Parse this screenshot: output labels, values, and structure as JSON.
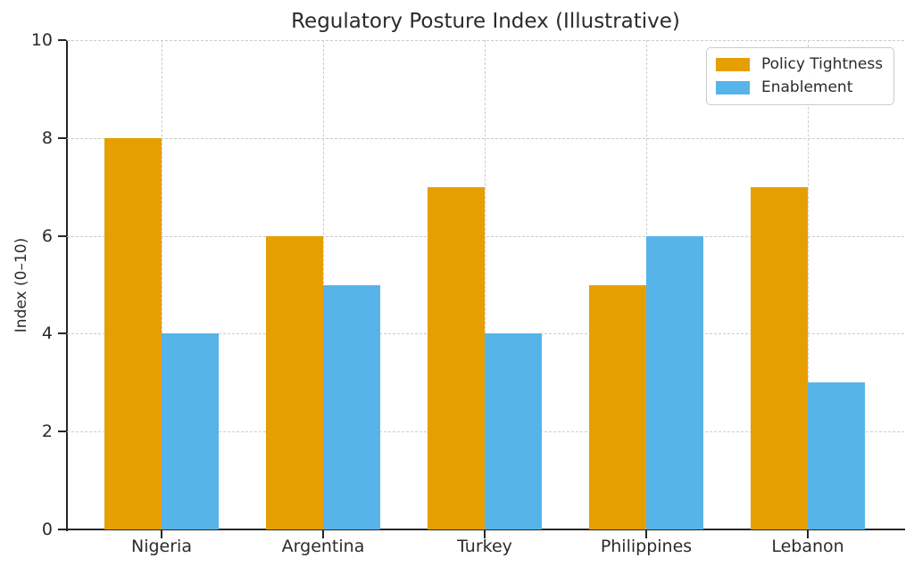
{
  "chart_data": {
    "type": "bar",
    "title": "Regulatory Posture Index (Illustrative)",
    "xlabel": "",
    "ylabel": "Index (0–10)",
    "categories": [
      "Nigeria",
      "Argentina",
      "Turkey",
      "Philippines",
      "Lebanon"
    ],
    "series": [
      {
        "name": "Policy Tightness",
        "color": "#E69F00",
        "values": [
          8,
          6,
          7,
          5,
          7
        ]
      },
      {
        "name": "Enablement",
        "color": "#56B4E9",
        "values": [
          4,
          5,
          4,
          6,
          3
        ]
      }
    ],
    "ylim": [
      0,
      10
    ],
    "yticks": [
      0,
      2,
      4,
      6,
      8,
      10
    ],
    "grid": "dashed horizontal at yticks and dashed vertical at category centers",
    "legend_position": "upper right",
    "spines": "left and bottom only",
    "colors": {
      "axis": "#262626",
      "gridline": "#cccccc",
      "text": "#2b2b2b",
      "background": "#ffffff"
    }
  }
}
